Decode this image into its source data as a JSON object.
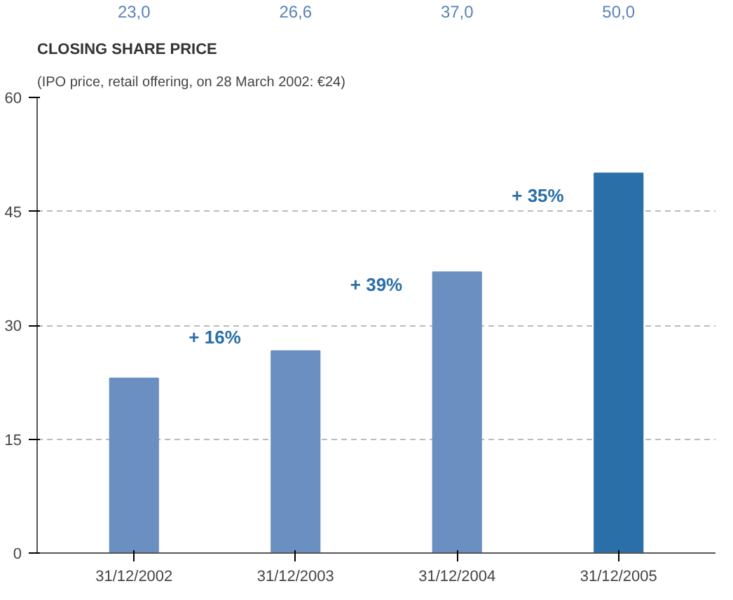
{
  "chart_data": {
    "type": "bar",
    "title": "CLOSING SHARE PRICE",
    "subtitle": "(IPO price, retail offering, on 28 March 2002: €24)",
    "categories": [
      "31/12/2002",
      "31/12/2003",
      "31/12/2004",
      "31/12/2005"
    ],
    "values": [
      23.0,
      26.6,
      37.0,
      50.0
    ],
    "colors": [
      "#6a8fc0",
      "#6a8fc0",
      "#6a8fc0",
      "#2a6fa8"
    ],
    "value_labels": [
      "23,0",
      "26,6",
      "37,0",
      "50,0"
    ],
    "annotations": [
      "+ 16%",
      "+ 39%",
      "+ 35%"
    ],
    "ylim": [
      0,
      60
    ],
    "yticks": [
      0,
      15,
      30,
      45,
      60
    ],
    "grid": "y"
  }
}
